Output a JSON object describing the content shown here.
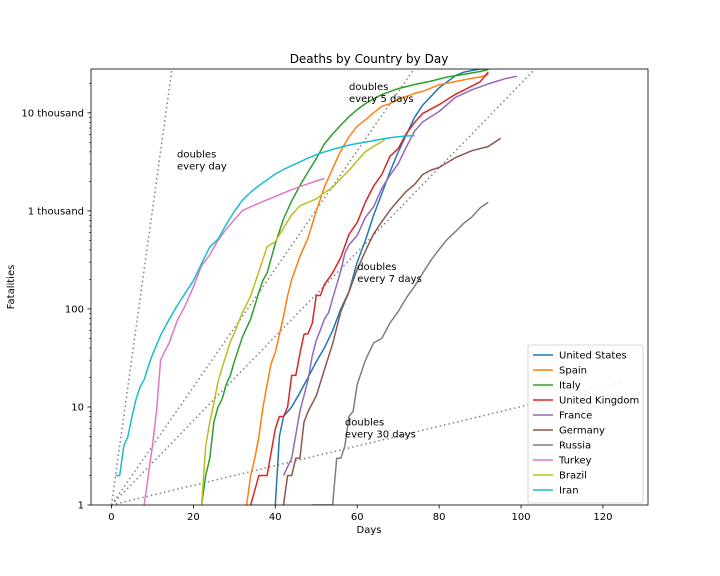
{
  "chart_data": {
    "type": "line",
    "title": "Deaths by Country by Day",
    "xlabel": "Days",
    "ylabel": "Fatalities",
    "xlim": [
      -5,
      131
    ],
    "ylim": [
      1,
      28000
    ],
    "yscale": "log",
    "grid": false,
    "legend_position": "lower-right",
    "x_ticks": [
      0,
      20,
      40,
      60,
      80,
      100,
      120
    ],
    "x_tick_labels": [
      "0",
      "20",
      "40",
      "60",
      "80",
      "100",
      "120"
    ],
    "y_ticks": [
      1,
      10,
      100,
      1000,
      10000
    ],
    "y_tick_labels": [
      "1",
      "10",
      "100",
      "1 thousand",
      "10 thousand"
    ],
    "reference_lines": [
      {
        "label": "doubles\nevery day",
        "doubling_days": 1,
        "color": "#808080",
        "label_x": 16,
        "label_y": 3500
      },
      {
        "label": "doubles\nevery 5 days",
        "doubling_days": 5,
        "color": "#808080",
        "label_x": 58,
        "label_y": 17000
      },
      {
        "label": "doubles\nevery 7 days",
        "doubling_days": 7,
        "color": "#808080",
        "label_x": 60,
        "label_y": 250
      },
      {
        "label": "doubles\nevery 30 days",
        "doubling_days": 30,
        "color": "#808080",
        "label_x": 57,
        "label_y": 6.5
      }
    ],
    "series": [
      {
        "name": "United States",
        "color": "#1f77b4",
        "x": [
          40,
          41,
          42,
          44,
          46,
          48,
          50,
          52,
          54,
          56,
          58,
          60,
          62,
          64,
          66,
          68,
          70,
          72,
          74,
          76,
          80,
          84,
          86,
          88,
          90,
          92
        ],
        "y": [
          1,
          5,
          8,
          10,
          14,
          20,
          29,
          40,
          60,
          100,
          150,
          300,
          500,
          900,
          1500,
          2500,
          4000,
          6000,
          9000,
          12000,
          18000,
          24000,
          26000,
          27000,
          28000,
          28000
        ]
      },
      {
        "name": "Spain",
        "color": "#ff7f0e",
        "x": [
          33,
          34,
          35,
          36,
          37,
          38,
          39,
          40,
          41,
          42,
          43,
          44,
          46,
          48,
          50,
          52,
          54,
          56,
          58,
          60,
          62,
          64,
          66,
          68,
          70,
          72,
          74,
          76,
          80,
          84,
          88,
          90,
          92
        ],
        "y": [
          1,
          2,
          3,
          5,
          10,
          17,
          28,
          36,
          55,
          84,
          136,
          200,
          342,
          533,
          1000,
          1750,
          2700,
          4100,
          5700,
          7300,
          8500,
          10000,
          11700,
          12400,
          13800,
          14700,
          15800,
          16600,
          19300,
          20900,
          22500,
          23200,
          24500
        ]
      },
      {
        "name": "Italy",
        "color": "#2ca02c",
        "x": [
          22,
          23,
          24,
          25,
          26,
          27,
          28,
          29,
          30,
          32,
          34,
          36,
          37,
          38,
          40,
          42,
          44,
          46,
          48,
          50,
          52,
          54,
          56,
          58,
          60,
          62,
          64,
          66,
          70,
          74,
          78,
          82,
          86,
          90,
          92
        ],
        "y": [
          1,
          2,
          3,
          7,
          10,
          12,
          17,
          21,
          29,
          52,
          79,
          148,
          197,
          233,
          463,
          827,
          1266,
          1809,
          2503,
          3405,
          4825,
          6077,
          7503,
          9134,
          10779,
          12428,
          13915,
          15362,
          17669,
          19468,
          21067,
          23227,
          24648,
          26384,
          27682
        ]
      },
      {
        "name": "United Kingdom",
        "color": "#d62728",
        "x": [
          34,
          36,
          38,
          40,
          41,
          42,
          43,
          44,
          45,
          46,
          47,
          48,
          49,
          50,
          51,
          52,
          54,
          56,
          58,
          60,
          62,
          64,
          66,
          68,
          70,
          72,
          74,
          76,
          80,
          84,
          88,
          90,
          92
        ],
        "y": [
          1,
          2,
          2,
          6,
          8,
          8,
          10,
          21,
          21,
          35,
          55,
          56,
          71,
          137,
          137,
          177,
          233,
          335,
          578,
          759,
          1228,
          1789,
          2352,
          3605,
          4313,
          6159,
          7978,
          9875,
          12107,
          15464,
          18738,
          20732,
          26097
        ]
      },
      {
        "name": "France",
        "color": "#9467bd",
        "x": [
          42,
          44,
          46,
          48,
          49,
          50,
          51,
          52,
          53,
          54,
          56,
          57,
          58,
          60,
          62,
          64,
          66,
          68,
          70,
          72,
          74,
          76,
          80,
          84,
          88,
          92,
          96,
          99
        ],
        "y": [
          2,
          3,
          9,
          19,
          33,
          48,
          61,
          79,
          91,
          127,
          244,
          372,
          450,
          562,
          860,
          1100,
          1696,
          2314,
          3024,
          4503,
          6507,
          8078,
          10328,
          14393,
          17167,
          19718,
          22245,
          23660
        ]
      },
      {
        "name": "Germany",
        "color": "#8c564b",
        "x": [
          42,
          43,
          44,
          45,
          46,
          47,
          48,
          50,
          52,
          54,
          56,
          58,
          60,
          62,
          64,
          66,
          68,
          70,
          72,
          74,
          76,
          78,
          80,
          84,
          88,
          92,
          95
        ],
        "y": [
          1,
          2,
          2,
          3,
          3,
          7,
          9,
          13,
          24,
          44,
          94,
          149,
          253,
          389,
          583,
          775,
          1017,
          1275,
          1584,
          1861,
          2349,
          2607,
          2767,
          3495,
          4110,
          4538,
          5500
        ]
      },
      {
        "name": "Russia",
        "color": "#7f7f7f",
        "x": [
          49,
          54,
          55,
          56,
          57,
          58,
          59,
          60,
          62,
          64,
          66,
          68,
          70,
          72,
          74,
          76,
          78,
          80,
          82,
          84,
          86,
          88,
          90,
          92
        ],
        "y": [
          1,
          1,
          3,
          3,
          4,
          8,
          9,
          17,
          30,
          45,
          50,
          72,
          94,
          130,
          170,
          232,
          313,
          405,
          513,
          615,
          747,
          867,
          1073,
          1222
        ]
      },
      {
        "name": "Turkey",
        "color": "#e377c2",
        "x": [
          8,
          9,
          10,
          11,
          12,
          13,
          14,
          16,
          18,
          20,
          22,
          24,
          26,
          28,
          30,
          32,
          34,
          36,
          38,
          40,
          42,
          44,
          46,
          48,
          50,
          52
        ],
        "y": [
          1,
          2,
          4,
          9,
          30,
          37,
          44,
          75,
          108,
          168,
          277,
          356,
          501,
          649,
          812,
          1006,
          1101,
          1198,
          1296,
          1403,
          1518,
          1643,
          1769,
          1890,
          2017,
          2140
        ]
      },
      {
        "name": "Brazil",
        "color": "#bcbd22",
        "x": [
          22,
          23,
          24,
          25,
          26,
          27,
          28,
          29,
          30,
          32,
          34,
          36,
          38,
          40,
          42,
          44,
          46,
          48,
          50,
          52,
          54,
          56,
          58,
          60,
          62,
          64,
          66,
          67
        ],
        "y": [
          1,
          4,
          7,
          11,
          18,
          25,
          34,
          46,
          57,
          92,
          136,
          240,
          431,
          486,
          667,
          915,
          1124,
          1223,
          1328,
          1532,
          1736,
          2141,
          2588,
          3241,
          4016,
          4543,
          5083,
          5513
        ]
      },
      {
        "name": "Iran",
        "color": "#17becf",
        "x": [
          1,
          2,
          3,
          4,
          5,
          6,
          7,
          8,
          9,
          10,
          12,
          14,
          16,
          18,
          20,
          22,
          24,
          26,
          28,
          30,
          32,
          34,
          36,
          38,
          40,
          42,
          44,
          46,
          48,
          50,
          52,
          54,
          56,
          58,
          60,
          62,
          64,
          66,
          68,
          70,
          72,
          74
        ],
        "y": [
          2,
          2,
          4,
          5,
          8,
          12,
          16,
          19,
          26,
          34,
          54,
          77,
          107,
          145,
          194,
          291,
          429,
          514,
          724,
          988,
          1284,
          1556,
          1812,
          2077,
          2378,
          2640,
          2898,
          3160,
          3452,
          3739,
          3993,
          4232,
          4474,
          4683,
          4869,
          5031,
          5209,
          5391,
          5574,
          5710,
          5806,
          5877
        ]
      }
    ]
  }
}
